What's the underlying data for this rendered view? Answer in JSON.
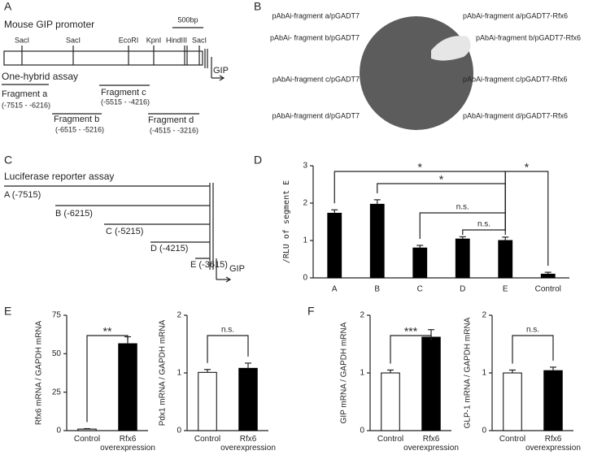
{
  "panel_labels": [
    "A",
    "B",
    "C",
    "D",
    "E",
    "F"
  ],
  "panel_a": {
    "title": "Mouse GIP promoter",
    "scale": "500bp",
    "sites": [
      "SacI",
      "SacI",
      "EcoRI",
      "KpnI",
      "HindIII",
      "SacI"
    ],
    "gene": "GIP",
    "assay": "One-hybrid assay",
    "fragments": [
      {
        "name": "Fragment a",
        "range": "(-7515 - -6216)"
      },
      {
        "name": "Fragment b",
        "range": "(-6515 - -5216)"
      },
      {
        "name": "Fragment c",
        "range": "(-5515 - -4216)"
      },
      {
        "name": "Fragment d",
        "range": "(-4515 - -3216)"
      }
    ]
  },
  "panel_b": {
    "left": [
      "pAbAi-fragment a/pGADT7",
      "pAbAi- fragment b/pGADT7",
      "pAbAi-fragment c/pGADT7",
      "pAbAi-fragment d/pGADT7"
    ],
    "right": [
      "pAbAi-fragment a/pGADT7-Rfx6",
      "pAbAi-fragment b/pGADT7-Rfx6",
      "pAbAi-fragment c/pGADT7-Rfx6",
      "pAbAi-fragment d/pGADT7-Rfx6"
    ]
  },
  "panel_c": {
    "title": "Luciferase reporter assay",
    "constructs": [
      "A (-7515)",
      "B (-6215)",
      "C (-5215)",
      "D (-4215)",
      "E (-3615)"
    ],
    "gene": "GIP"
  },
  "chart_data": [
    {
      "type": "bar",
      "ylabel": "/RLU of segment E",
      "categories": [
        "A",
        "B",
        "C",
        "D",
        "E",
        "Control"
      ],
      "values": [
        1.73,
        1.97,
        0.8,
        1.04,
        1.0,
        0.1
      ],
      "errors": [
        0.09,
        0.12,
        0.07,
        0.06,
        0.09,
        0.05
      ],
      "colors": [
        "#000000",
        "#000000",
        "#000000",
        "#000000",
        "#000000",
        "#000000"
      ],
      "ylim": [
        0,
        3
      ],
      "yticks": [
        0,
        1,
        2,
        3
      ],
      "annotations": [
        {
          "text": "*",
          "between": [
            "A",
            "E"
          ]
        },
        {
          "text": "*",
          "between": [
            "B",
            "E"
          ]
        },
        {
          "text": "n.s.",
          "between": [
            "C",
            "E"
          ]
        },
        {
          "text": "n.s.",
          "between": [
            "D",
            "E"
          ]
        },
        {
          "text": "*",
          "between": [
            "E",
            "Control"
          ]
        }
      ]
    },
    {
      "type": "bar",
      "ylabel": "Rfx6 mRNA / GAPDH mRNA",
      "categories": [
        "Control",
        "Rfx6 overexpression"
      ],
      "values": [
        1,
        56.5
      ],
      "errors": [
        0.3,
        4.5
      ],
      "colors": [
        "#ffffff",
        "#000000"
      ],
      "ylim": [
        0,
        75
      ],
      "yticks": [
        0,
        25,
        50,
        75
      ],
      "annotations": [
        {
          "text": "**",
          "between": [
            "Control",
            "Rfx6 overexpression"
          ]
        }
      ]
    },
    {
      "type": "bar",
      "ylabel": "Pdx1 mRNA / GAPDH mRNA",
      "categories": [
        "Control",
        "Rfx6 overexpression"
      ],
      "values": [
        1.01,
        1.08
      ],
      "errors": [
        0.05,
        0.09
      ],
      "colors": [
        "#ffffff",
        "#000000"
      ],
      "ylim": [
        0,
        2
      ],
      "yticks": [
        0,
        1,
        2
      ],
      "annotations": [
        {
          "text": "n.s.",
          "between": [
            "Control",
            "Rfx6 overexpression"
          ]
        }
      ]
    },
    {
      "type": "bar",
      "ylabel": "GIP mRNA / GAPDH mRNA",
      "categories": [
        "Control",
        "Rfx6 overexpression"
      ],
      "values": [
        1.0,
        1.62
      ],
      "errors": [
        0.05,
        0.13
      ],
      "colors": [
        "#ffffff",
        "#000000"
      ],
      "ylim": [
        0,
        2
      ],
      "yticks": [
        0,
        1,
        2
      ],
      "annotations": [
        {
          "text": "***",
          "between": [
            "Control",
            "Rfx6 overexpression"
          ]
        }
      ]
    },
    {
      "type": "bar",
      "ylabel": "GLP-1 mRNA / GAPDH mRNA",
      "categories": [
        "Control",
        "Rfx6 overexpression"
      ],
      "values": [
        1.0,
        1.04
      ],
      "errors": [
        0.05,
        0.06
      ],
      "colors": [
        "#ffffff",
        "#000000"
      ],
      "ylim": [
        0,
        2
      ],
      "yticks": [
        0,
        1,
        2
      ],
      "annotations": [
        {
          "text": "n.s.",
          "between": [
            "Control",
            "Rfx6 overexpression"
          ]
        }
      ]
    }
  ]
}
